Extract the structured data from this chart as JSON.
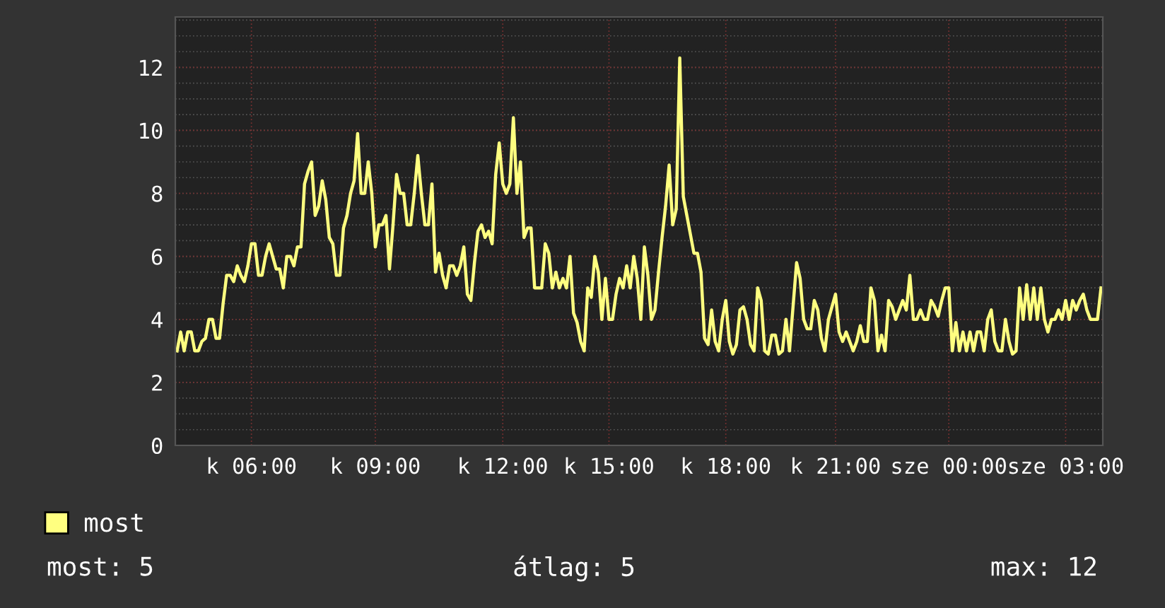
{
  "chart_data": {
    "type": "line",
    "categories": [
      null,
      null,
      null,
      null,
      null,
      null,
      null,
      null,
      null,
      null,
      null,
      null,
      null,
      null,
      null,
      null,
      null,
      null,
      null,
      null,
      null,
      "k 06:00",
      null,
      null,
      null,
      null,
      null,
      null,
      null,
      null,
      null,
      null,
      null,
      null,
      null,
      null,
      null,
      null,
      null,
      null,
      null,
      null,
      null,
      null,
      null,
      null,
      null,
      null,
      null,
      null,
      null,
      null,
      null,
      null,
      null,
      null,
      "k 09:00",
      null,
      null,
      null,
      null,
      null,
      null,
      null,
      null,
      null,
      null,
      null,
      null,
      null,
      null,
      null,
      null,
      null,
      null,
      null,
      null,
      null,
      null,
      null,
      null,
      null,
      null,
      null,
      null,
      null,
      null,
      null,
      null,
      null,
      null,
      null,
      "k 12:00",
      null,
      null,
      null,
      null,
      null,
      null,
      null,
      null,
      null,
      null,
      null,
      null,
      null,
      null,
      null,
      null,
      null,
      null,
      null,
      null,
      null,
      null,
      null,
      null,
      null,
      null,
      null,
      null,
      null,
      "k 15:00",
      null,
      null,
      null,
      null,
      null,
      null,
      null,
      null,
      null,
      null,
      null,
      null,
      null,
      null,
      null,
      null,
      null,
      null,
      null,
      null,
      null,
      null,
      null,
      null,
      null,
      null,
      null,
      null,
      null,
      null,
      null,
      null,
      "k 18:00",
      null,
      null,
      null,
      null,
      null,
      null,
      null,
      null,
      null,
      null,
      null,
      null,
      null,
      null,
      null,
      null,
      null,
      null,
      null,
      null,
      null,
      null,
      null,
      null,
      null,
      null,
      null,
      null,
      null,
      null,
      "k 21:00",
      null,
      null,
      null,
      null,
      null,
      null,
      null,
      null,
      null,
      null,
      null,
      null,
      null,
      null,
      null,
      null,
      null,
      null,
      null,
      null,
      null,
      null,
      null,
      null,
      null,
      null,
      null,
      null,
      null,
      null,
      null,
      "sze 00:00",
      null,
      null,
      null,
      null,
      null,
      null,
      null,
      null,
      null,
      null,
      null,
      null,
      null,
      null,
      null,
      null,
      null,
      null,
      null,
      null,
      null,
      null,
      null,
      null,
      null,
      null,
      null,
      null,
      null,
      null,
      null,
      null,
      "sze 03:00",
      null,
      null,
      null,
      null,
      null,
      null,
      null,
      null,
      null,
      null
    ],
    "ylim": [
      0,
      13.6
    ],
    "yticks": [
      0,
      2,
      4,
      6,
      8,
      10,
      12
    ],
    "grid": true,
    "legend": "bottom left",
    "marker": "none",
    "line_style": "solid",
    "annotations": [
      "most: 5",
      "átlag: 5",
      "max: 12"
    ],
    "series": [
      {
        "name": "most",
        "color": "#ffff80",
        "values": [
          3,
          3.6,
          3,
          3.6,
          3.6,
          3,
          3,
          3.3,
          3.4,
          4,
          4,
          3.4,
          3.4,
          4.5,
          5.4,
          5.4,
          5.2,
          5.7,
          5.4,
          5.2,
          5.7,
          6.4,
          6.4,
          5.4,
          5.4,
          6,
          6.4,
          6,
          5.6,
          5.6,
          5,
          6,
          6,
          5.7,
          6.3,
          6.3,
          8.3,
          8.7,
          9,
          7.3,
          7.6,
          8.4,
          7.8,
          6.6,
          6.4,
          5.4,
          5.4,
          6.9,
          7.3,
          8,
          8.4,
          9.9,
          8,
          8,
          9,
          8,
          6.3,
          7,
          7,
          7.3,
          5.6,
          7,
          8.6,
          8,
          8,
          7,
          7,
          8,
          9.2,
          8,
          7,
          7,
          8.3,
          5.5,
          6.1,
          5.4,
          5,
          5.7,
          5.7,
          5.4,
          5.7,
          6.3,
          4.8,
          4.6,
          5.8,
          6.8,
          7,
          6.6,
          6.8,
          6.4,
          8.6,
          9.6,
          8.3,
          8,
          8.3,
          10.4,
          8,
          9,
          6.6,
          6.9,
          6.9,
          5,
          5,
          5,
          6.4,
          6.1,
          5,
          5.5,
          5,
          5.3,
          5,
          6,
          4.2,
          3.9,
          3.3,
          3,
          5,
          4.7,
          6,
          5.5,
          4,
          5.3,
          4,
          4,
          4.8,
          5.3,
          5,
          5.7,
          5,
          6,
          5.3,
          4,
          6.3,
          5.4,
          4,
          4.3,
          5.5,
          6.6,
          7.6,
          8.9,
          7,
          7.5,
          12.3,
          7.9,
          7.3,
          6.7,
          6.1,
          6.1,
          5.5,
          3.4,
          3.2,
          4.3,
          3.3,
          3,
          4,
          4.6,
          3.3,
          2.9,
          3.2,
          4.3,
          4.4,
          4,
          3.2,
          3,
          5,
          4.6,
          3,
          2.9,
          3.5,
          3.5,
          2.9,
          3,
          4,
          3,
          4.4,
          5.8,
          5.3,
          4,
          3.7,
          3.7,
          4.6,
          4.3,
          3.4,
          3,
          4,
          4.4,
          4.8,
          3.6,
          3.3,
          3.6,
          3.3,
          3,
          3.3,
          3.8,
          3.3,
          3.3,
          5,
          4.6,
          3,
          3.5,
          3,
          4.6,
          4.4,
          4,
          4.3,
          4.6,
          4.3,
          5.4,
          4,
          4,
          4.3,
          4,
          4,
          4.6,
          4.4,
          4.1,
          4.6,
          5,
          5,
          3,
          3.9,
          3,
          3.6,
          3,
          3.6,
          3,
          3.6,
          3.6,
          3,
          4,
          4.3,
          3.3,
          3,
          3,
          4,
          3.3,
          2.9,
          3,
          5,
          4,
          5.1,
          4,
          5,
          4,
          5,
          4,
          3.6,
          4,
          4,
          4.3,
          4,
          4.6,
          4,
          4.6,
          4.3,
          4.6,
          4.8,
          4.3,
          4,
          4,
          4,
          5
        ]
      }
    ]
  }
}
